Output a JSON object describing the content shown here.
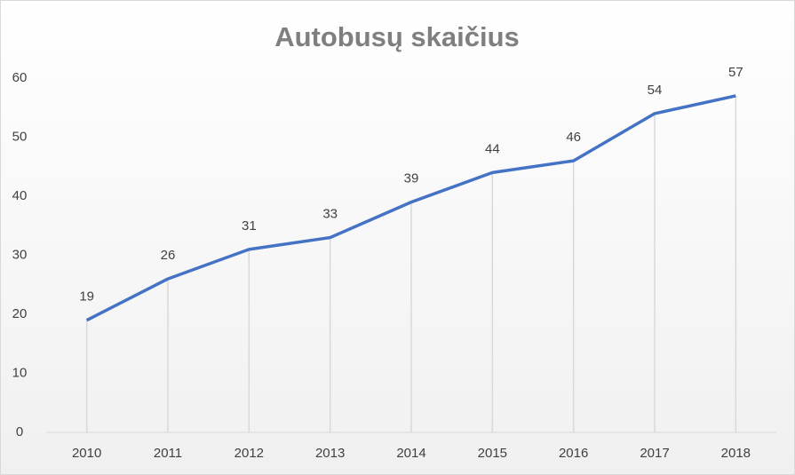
{
  "chart_data": {
    "type": "line",
    "title": "Autobusų skaičius",
    "categories": [
      "2010",
      "2011",
      "2012",
      "2013",
      "2014",
      "2015",
      "2016",
      "2017",
      "2018"
    ],
    "values": [
      19,
      26,
      31,
      33,
      39,
      44,
      46,
      54,
      57
    ],
    "color": "#4472c4",
    "ylim": [
      0,
      60
    ],
    "yticks": [
      0,
      10,
      20,
      30,
      40,
      50,
      60
    ],
    "grid": false,
    "drop_lines": true
  }
}
